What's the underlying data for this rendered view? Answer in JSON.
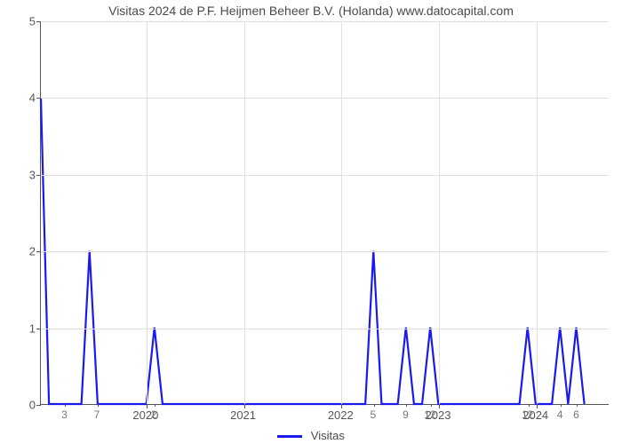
{
  "chart": {
    "type": "line",
    "title": "Visitas 2024 de P.F. Heijmen Beheer B.V. (Holanda) www.datocapital.com",
    "title_fontsize": 14,
    "title_color": "#4a4a4a",
    "background_color": "#ffffff",
    "grid_color": "#e0e0e0",
    "axis_color": "#555555",
    "tick_label_color": "#555555",
    "minor_tick_label_color": "#777777",
    "line_color": "#1a1af0",
    "line_width": 2.2,
    "ylim": [
      0,
      5
    ],
    "yticks": [
      0,
      1,
      2,
      3,
      4,
      5
    ],
    "x_domain_total_months": 70,
    "x_major_ticks": [
      {
        "t": 13,
        "label": "2020"
      },
      {
        "t": 25,
        "label": "2021"
      },
      {
        "t": 37,
        "label": "2022"
      },
      {
        "t": 49,
        "label": "2023"
      },
      {
        "t": 61,
        "label": "2024"
      }
    ],
    "x_minor_ticks": [
      {
        "t": 3,
        "label": "3"
      },
      {
        "t": 7,
        "label": "7"
      },
      {
        "t": 14,
        "label": "2"
      },
      {
        "t": 41,
        "label": "5"
      },
      {
        "t": 45,
        "label": "9"
      },
      {
        "t": 48,
        "label": "12"
      },
      {
        "t": 60,
        "label": "12"
      },
      {
        "t": 64,
        "label": "4"
      },
      {
        "t": 66,
        "label": "6"
      }
    ],
    "series": {
      "name": "Visitas",
      "points": [
        {
          "t": 0,
          "v": 4
        },
        {
          "t": 1,
          "v": 0
        },
        {
          "t": 2,
          "v": 0
        },
        {
          "t": 3,
          "v": 0
        },
        {
          "t": 4,
          "v": 0
        },
        {
          "t": 5,
          "v": 0
        },
        {
          "t": 6,
          "v": 2
        },
        {
          "t": 7,
          "v": 0
        },
        {
          "t": 8,
          "v": 0
        },
        {
          "t": 9,
          "v": 0
        },
        {
          "t": 10,
          "v": 0
        },
        {
          "t": 11,
          "v": 0
        },
        {
          "t": 12,
          "v": 0
        },
        {
          "t": 13,
          "v": 0
        },
        {
          "t": 14,
          "v": 1
        },
        {
          "t": 15,
          "v": 0
        },
        {
          "t": 16,
          "v": 0
        },
        {
          "t": 17,
          "v": 0
        },
        {
          "t": 18,
          "v": 0
        },
        {
          "t": 19,
          "v": 0
        },
        {
          "t": 20,
          "v": 0
        },
        {
          "t": 21,
          "v": 0
        },
        {
          "t": 22,
          "v": 0
        },
        {
          "t": 23,
          "v": 0
        },
        {
          "t": 24,
          "v": 0
        },
        {
          "t": 25,
          "v": 0
        },
        {
          "t": 26,
          "v": 0
        },
        {
          "t": 27,
          "v": 0
        },
        {
          "t": 28,
          "v": 0
        },
        {
          "t": 29,
          "v": 0
        },
        {
          "t": 30,
          "v": 0
        },
        {
          "t": 31,
          "v": 0
        },
        {
          "t": 32,
          "v": 0
        },
        {
          "t": 33,
          "v": 0
        },
        {
          "t": 34,
          "v": 0
        },
        {
          "t": 35,
          "v": 0
        },
        {
          "t": 36,
          "v": 0
        },
        {
          "t": 37,
          "v": 0
        },
        {
          "t": 38,
          "v": 0
        },
        {
          "t": 39,
          "v": 0
        },
        {
          "t": 40,
          "v": 0
        },
        {
          "t": 41,
          "v": 2
        },
        {
          "t": 42,
          "v": 0
        },
        {
          "t": 43,
          "v": 0
        },
        {
          "t": 44,
          "v": 0
        },
        {
          "t": 45,
          "v": 1
        },
        {
          "t": 46,
          "v": 0
        },
        {
          "t": 47,
          "v": 0
        },
        {
          "t": 48,
          "v": 1
        },
        {
          "t": 49,
          "v": 0
        },
        {
          "t": 50,
          "v": 0
        },
        {
          "t": 51,
          "v": 0
        },
        {
          "t": 52,
          "v": 0
        },
        {
          "t": 53,
          "v": 0
        },
        {
          "t": 54,
          "v": 0
        },
        {
          "t": 55,
          "v": 0
        },
        {
          "t": 56,
          "v": 0
        },
        {
          "t": 57,
          "v": 0
        },
        {
          "t": 58,
          "v": 0
        },
        {
          "t": 59,
          "v": 0
        },
        {
          "t": 60,
          "v": 1
        },
        {
          "t": 61,
          "v": 0
        },
        {
          "t": 62,
          "v": 0
        },
        {
          "t": 63,
          "v": 0
        },
        {
          "t": 64,
          "v": 1
        },
        {
          "t": 65,
          "v": 0
        },
        {
          "t": 66,
          "v": 1
        },
        {
          "t": 67,
          "v": 0
        }
      ]
    },
    "legend": {
      "label": "Visitas",
      "swatch_color": "#1a1af0",
      "position": "bottom-center",
      "fontsize": 13
    }
  }
}
